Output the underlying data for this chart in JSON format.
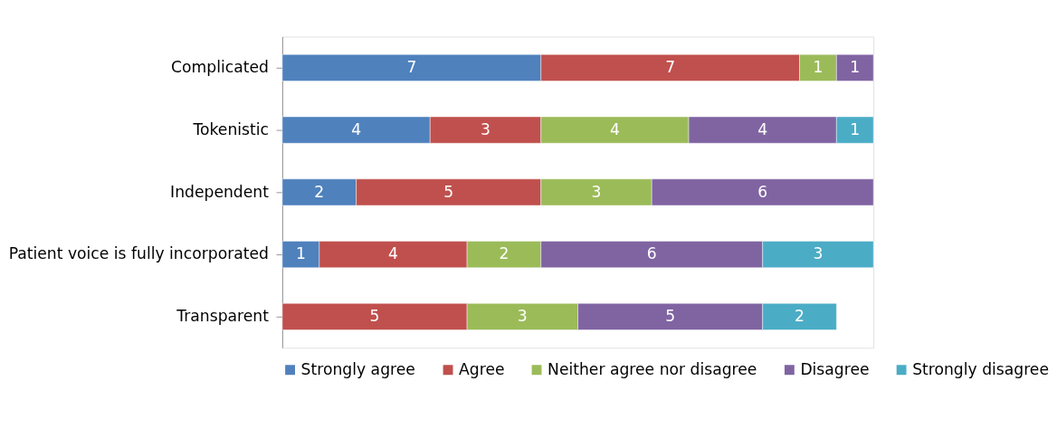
{
  "chart_data": {
    "type": "bar",
    "orientation": "horizontal",
    "stacked": true,
    "data_labels": true,
    "legend": "bottom",
    "grid": false,
    "categories": [
      "Complicated",
      "Tokenistic",
      "Independent",
      "Patient voice is fully incorporated",
      "Transparent"
    ],
    "series": [
      {
        "name": "Strongly agree",
        "color": "#4f81bd",
        "values": [
          7,
          4,
          2,
          1,
          null
        ]
      },
      {
        "name": "Agree",
        "color": "#c0504d",
        "values": [
          7,
          3,
          5,
          4,
          5
        ]
      },
      {
        "name": "Neither agree nor disagree",
        "color": "#9bbb59",
        "values": [
          1,
          4,
          3,
          2,
          3
        ]
      },
      {
        "name": "Disagree",
        "color": "#8064a2",
        "values": [
          1,
          4,
          6,
          6,
          5
        ]
      },
      {
        "name": "Strongly disagree",
        "color": "#4bacc6",
        "values": [
          null,
          1,
          null,
          3,
          2
        ]
      }
    ]
  }
}
